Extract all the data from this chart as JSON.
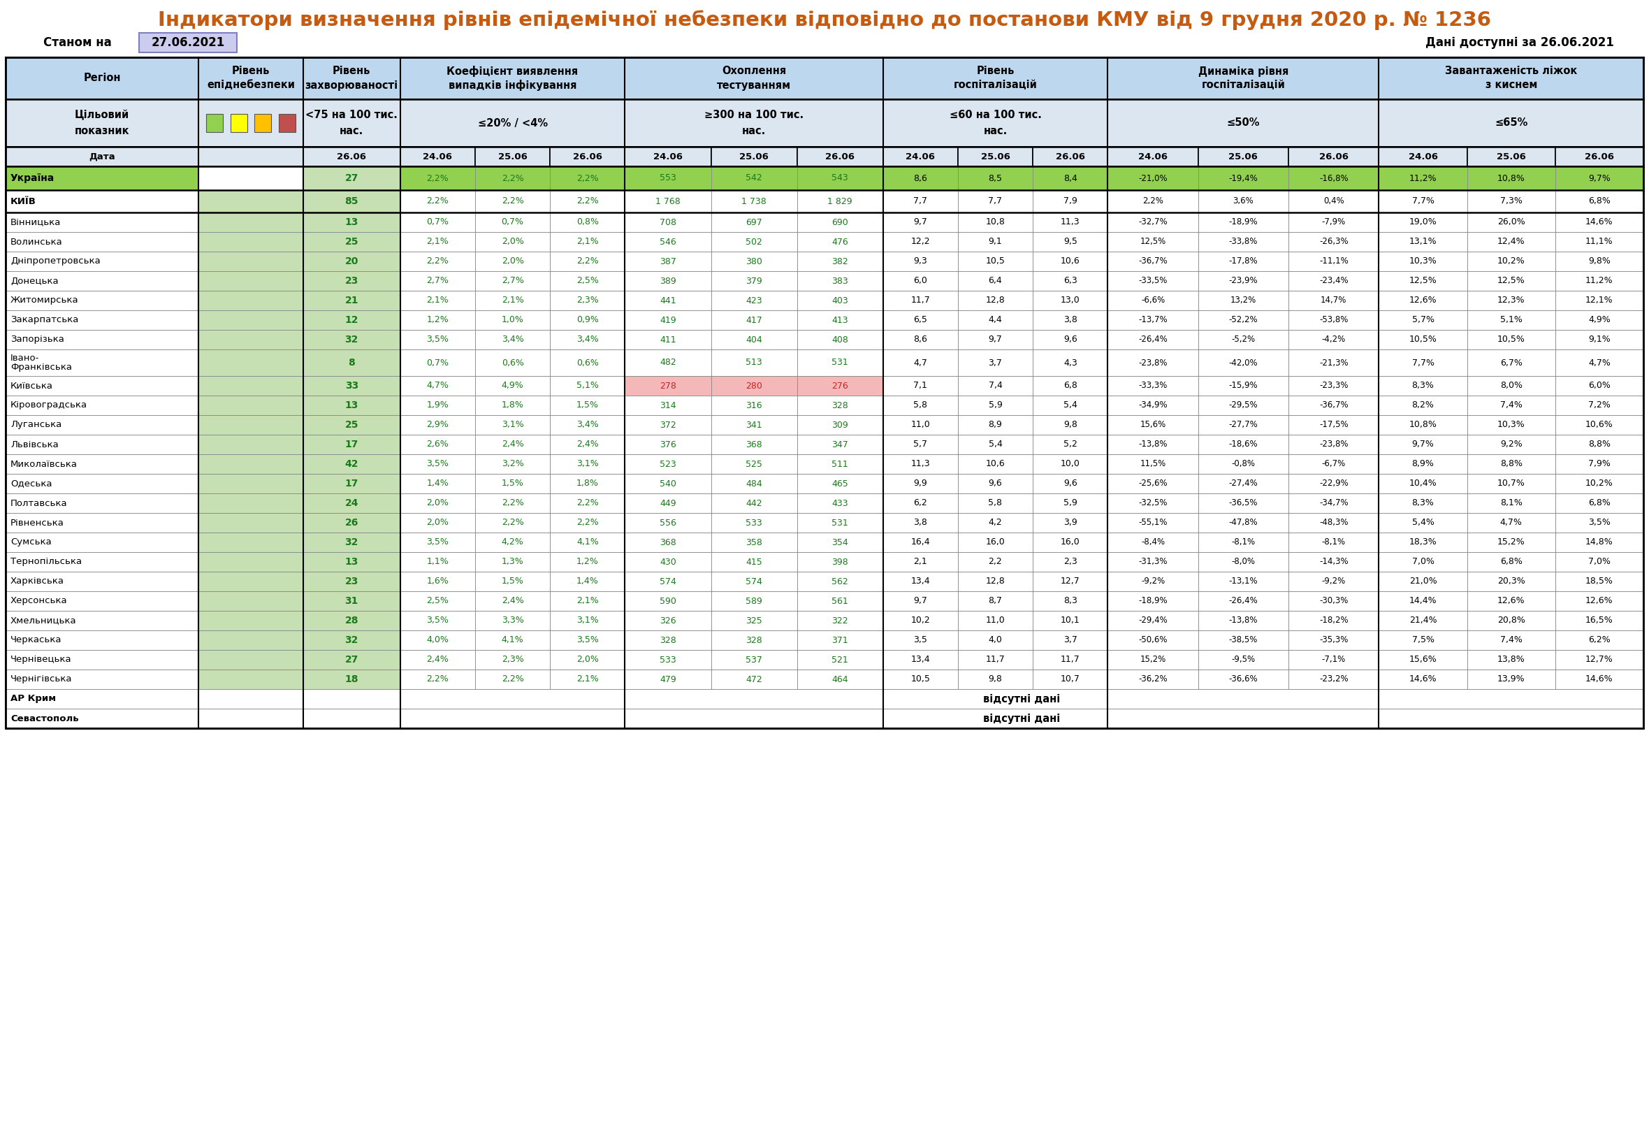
{
  "title": "Індикатори визначення рівнів епідемічної небезпеки відповідно до постанови КМУ від 9 грудня 2020 р. № 1236",
  "date_label": "Станом на",
  "date_value": "27.06.2021",
  "data_available": "Дані доступні за 26.06.2021",
  "regions": [
    "Україна",
    "КИЇВ",
    "Вінницька",
    "Волинська",
    "Дніпропетровська",
    "Донецька",
    "Житомирська",
    "Закарпатська",
    "Запорізька",
    "Івано-\nФранківська",
    "Київська",
    "Кіровоградська",
    "Луганська",
    "Львівська",
    "Миколаївська",
    "Одеська",
    "Полтавська",
    "Рівненська",
    "Сумська",
    "Тернопільська",
    "Харківська",
    "Херсонська",
    "Хмельницька",
    "Черкаська",
    "Чернівецька",
    "Чернігівська",
    "АР Крим",
    "Севастополь"
  ],
  "level": [
    27,
    85,
    13,
    25,
    20,
    23,
    21,
    12,
    32,
    8,
    33,
    13,
    25,
    17,
    42,
    17,
    24,
    26,
    32,
    13,
    23,
    31,
    28,
    32,
    27,
    18,
    null,
    null
  ],
  "koef_2406": [
    "2,2%",
    "2,2%",
    "0,7%",
    "2,1%",
    "2,2%",
    "2,7%",
    "2,1%",
    "1,2%",
    "3,5%",
    "0,7%",
    "4,7%",
    "1,9%",
    "2,9%",
    "2,6%",
    "3,5%",
    "1,4%",
    "2,0%",
    "2,0%",
    "3,5%",
    "1,1%",
    "1,6%",
    "2,5%",
    "3,5%",
    "4,0%",
    "2,4%",
    "2,2%",
    null,
    null
  ],
  "koef_2506": [
    "2,2%",
    "2,2%",
    "0,7%",
    "2,0%",
    "2,0%",
    "2,7%",
    "2,1%",
    "1,0%",
    "3,4%",
    "0,6%",
    "4,9%",
    "1,8%",
    "3,1%",
    "2,4%",
    "3,2%",
    "1,5%",
    "2,2%",
    "2,2%",
    "4,2%",
    "1,3%",
    "1,5%",
    "2,4%",
    "3,3%",
    "4,1%",
    "2,3%",
    "2,2%",
    null,
    null
  ],
  "koef_2606": [
    "2,2%",
    "2,2%",
    "0,8%",
    "2,1%",
    "2,2%",
    "2,5%",
    "2,3%",
    "0,9%",
    "3,4%",
    "0,6%",
    "5,1%",
    "1,5%",
    "3,4%",
    "2,4%",
    "3,1%",
    "1,8%",
    "2,2%",
    "2,2%",
    "4,1%",
    "1,2%",
    "1,4%",
    "2,1%",
    "3,1%",
    "3,5%",
    "2,0%",
    "2,1%",
    null,
    null
  ],
  "ohopl_2406": [
    "553",
    "1 768",
    "708",
    "546",
    "387",
    "389",
    "441",
    "419",
    "411",
    "482",
    "278",
    "314",
    "372",
    "376",
    "523",
    "540",
    "449",
    "556",
    "368",
    "430",
    "574",
    "590",
    "326",
    "328",
    "533",
    "479",
    null,
    null
  ],
  "ohopl_2506": [
    "542",
    "1 738",
    "697",
    "502",
    "380",
    "379",
    "423",
    "417",
    "404",
    "513",
    "280",
    "316",
    "341",
    "368",
    "525",
    "484",
    "442",
    "533",
    "358",
    "415",
    "574",
    "589",
    "325",
    "328",
    "537",
    "472",
    null,
    null
  ],
  "ohopl_2606": [
    "543",
    "1 829",
    "690",
    "476",
    "382",
    "383",
    "403",
    "413",
    "408",
    "531",
    "276",
    "328",
    "309",
    "347",
    "511",
    "465",
    "433",
    "531",
    "354",
    "398",
    "562",
    "561",
    "322",
    "371",
    "521",
    "464",
    null,
    null
  ],
  "hosp_2406": [
    "8,6",
    "7,7",
    "9,7",
    "12,2",
    "9,3",
    "6,0",
    "11,7",
    "6,5",
    "8,6",
    "4,7",
    "7,1",
    "5,8",
    "11,0",
    "5,7",
    "11,3",
    "9,9",
    "6,2",
    "3,8",
    "16,4",
    "2,1",
    "13,4",
    "9,7",
    "10,2",
    "3,5",
    "13,4",
    "10,5",
    null,
    null
  ],
  "hosp_2506": [
    "8,5",
    "7,7",
    "10,8",
    "9,1",
    "10,5",
    "6,4",
    "12,8",
    "4,4",
    "9,7",
    "3,7",
    "7,4",
    "5,9",
    "8,9",
    "5,4",
    "10,6",
    "9,6",
    "5,8",
    "4,2",
    "16,0",
    "2,2",
    "12,8",
    "8,7",
    "11,0",
    "4,0",
    "11,7",
    "9,8",
    null,
    null
  ],
  "hosp_2606": [
    "8,4",
    "7,9",
    "11,3",
    "9,5",
    "10,6",
    "6,3",
    "13,0",
    "3,8",
    "9,6",
    "4,3",
    "6,8",
    "5,4",
    "9,8",
    "5,2",
    "10,0",
    "9,6",
    "5,9",
    "3,9",
    "16,0",
    "2,3",
    "12,7",
    "8,3",
    "10,1",
    "3,7",
    "11,7",
    "10,7",
    null,
    null
  ],
  "dyn_2406": [
    "-21,0%",
    "2,2%",
    "-32,7%",
    "12,5%",
    "-36,7%",
    "-33,5%",
    "-6,6%",
    "-13,7%",
    "-26,4%",
    "-23,8%",
    "-33,3%",
    "-34,9%",
    "15,6%",
    "-13,8%",
    "11,5%",
    "-25,6%",
    "-32,5%",
    "-55,1%",
    "-8,4%",
    "-31,3%",
    "-9,2%",
    "-18,9%",
    "-29,4%",
    "-50,6%",
    "15,2%",
    "-36,2%",
    null,
    null
  ],
  "dyn_2506": [
    "-19,4%",
    "3,6%",
    "-18,9%",
    "-33,8%",
    "-17,8%",
    "-23,9%",
    "13,2%",
    "-52,2%",
    "-5,2%",
    "-42,0%",
    "-15,9%",
    "-29,5%",
    "-27,7%",
    "-18,6%",
    "-0,8%",
    "-27,4%",
    "-36,5%",
    "-47,8%",
    "-8,1%",
    "-8,0%",
    "-13,1%",
    "-26,4%",
    "-13,8%",
    "-38,5%",
    "-9,5%",
    "-36,6%",
    null,
    null
  ],
  "dyn_2606": [
    "-16,8%",
    "0,4%",
    "-7,9%",
    "-26,3%",
    "-11,1%",
    "-23,4%",
    "14,7%",
    "-53,8%",
    "-4,2%",
    "-21,3%",
    "-23,3%",
    "-36,7%",
    "-17,5%",
    "-23,8%",
    "-6,7%",
    "-22,9%",
    "-34,7%",
    "-48,3%",
    "-8,1%",
    "-14,3%",
    "-9,2%",
    "-30,3%",
    "-18,2%",
    "-35,3%",
    "-7,1%",
    "-23,2%",
    null,
    null
  ],
  "zav_2406": [
    "11,2%",
    "7,7%",
    "19,0%",
    "13,1%",
    "10,3%",
    "12,5%",
    "12,6%",
    "5,7%",
    "10,5%",
    "7,7%",
    "8,3%",
    "8,2%",
    "10,8%",
    "9,7%",
    "8,9%",
    "10,4%",
    "8,3%",
    "5,4%",
    "18,3%",
    "7,0%",
    "21,0%",
    "14,4%",
    "21,4%",
    "7,5%",
    "15,6%",
    "14,6%",
    null,
    null
  ],
  "zav_2506": [
    "10,8%",
    "7,3%",
    "26,0%",
    "12,4%",
    "10,2%",
    "12,5%",
    "12,3%",
    "5,1%",
    "10,5%",
    "6,7%",
    "8,0%",
    "7,4%",
    "10,3%",
    "9,2%",
    "8,8%",
    "10,7%",
    "8,1%",
    "4,7%",
    "15,2%",
    "6,8%",
    "20,3%",
    "12,6%",
    "20,8%",
    "7,4%",
    "13,8%",
    "13,9%",
    null,
    null
  ],
  "zav_2606": [
    "9,7%",
    "6,8%",
    "14,6%",
    "11,1%",
    "9,8%",
    "11,2%",
    "12,1%",
    "4,9%",
    "9,1%",
    "4,7%",
    "6,0%",
    "7,2%",
    "10,6%",
    "8,8%",
    "7,9%",
    "10,2%",
    "6,8%",
    "3,5%",
    "14,8%",
    "7,0%",
    "18,5%",
    "12,6%",
    "16,5%",
    "6,2%",
    "12,7%",
    "14,6%",
    null,
    null
  ],
  "color_squares": [
    "#92d050",
    "#ffff00",
    "#ffc000",
    "#c0504d"
  ],
  "title_color": "#c55a11",
  "bg_header": "#bdd7ee",
  "bg_target_row": "#dce6f1",
  "bg_ukraine": "#92d050",
  "bg_kyiv": "#c6e0b4",
  "bg_level_col": "#c6e0b4",
  "bg_red": "#f4b8b8"
}
